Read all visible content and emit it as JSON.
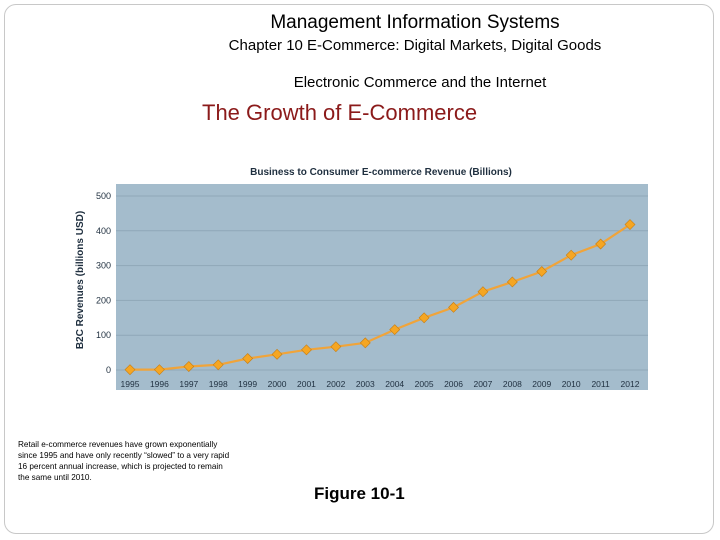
{
  "slide": {
    "course_title": "Management Information Systems",
    "chapter_title": "Chapter 10 E-Commerce: Digital Markets, Digital Goods",
    "section_title": "Electronic Commerce and the Internet",
    "heading": "The Growth of E-Commerce",
    "caption": "Retail e-commerce revenues have grown exponentially since 1995 and have only recently “slowed” to a very rapid 16 percent annual increase, which is projected to remain the same until 2010.",
    "figure_label": "Figure 10-1"
  },
  "colors": {
    "heading": "#8b1a1a",
    "plot_background": "#a4bccc",
    "line": "#f0a43a",
    "marker": "#f5a623"
  },
  "chart_data": {
    "type": "line",
    "title": "Business to Consumer E-commerce Revenue (Billions)",
    "xlabel": "",
    "ylabel": "B2C Revenues (billions USD)",
    "categories": [
      "1995",
      "1996",
      "1997",
      "1998",
      "1999",
      "2000",
      "2001",
      "2002",
      "2003",
      "2004",
      "2005",
      "2006",
      "2007",
      "2008",
      "2009",
      "2010",
      "2011",
      "2012"
    ],
    "values": [
      1,
      1,
      10,
      15,
      33,
      45,
      58,
      67,
      78,
      116,
      150,
      180,
      225,
      253,
      283,
      330,
      362,
      418
    ],
    "ylim": [
      0,
      500
    ],
    "yticks": [
      0,
      100,
      200,
      300,
      400,
      500
    ],
    "grid": true,
    "legend": "none"
  }
}
